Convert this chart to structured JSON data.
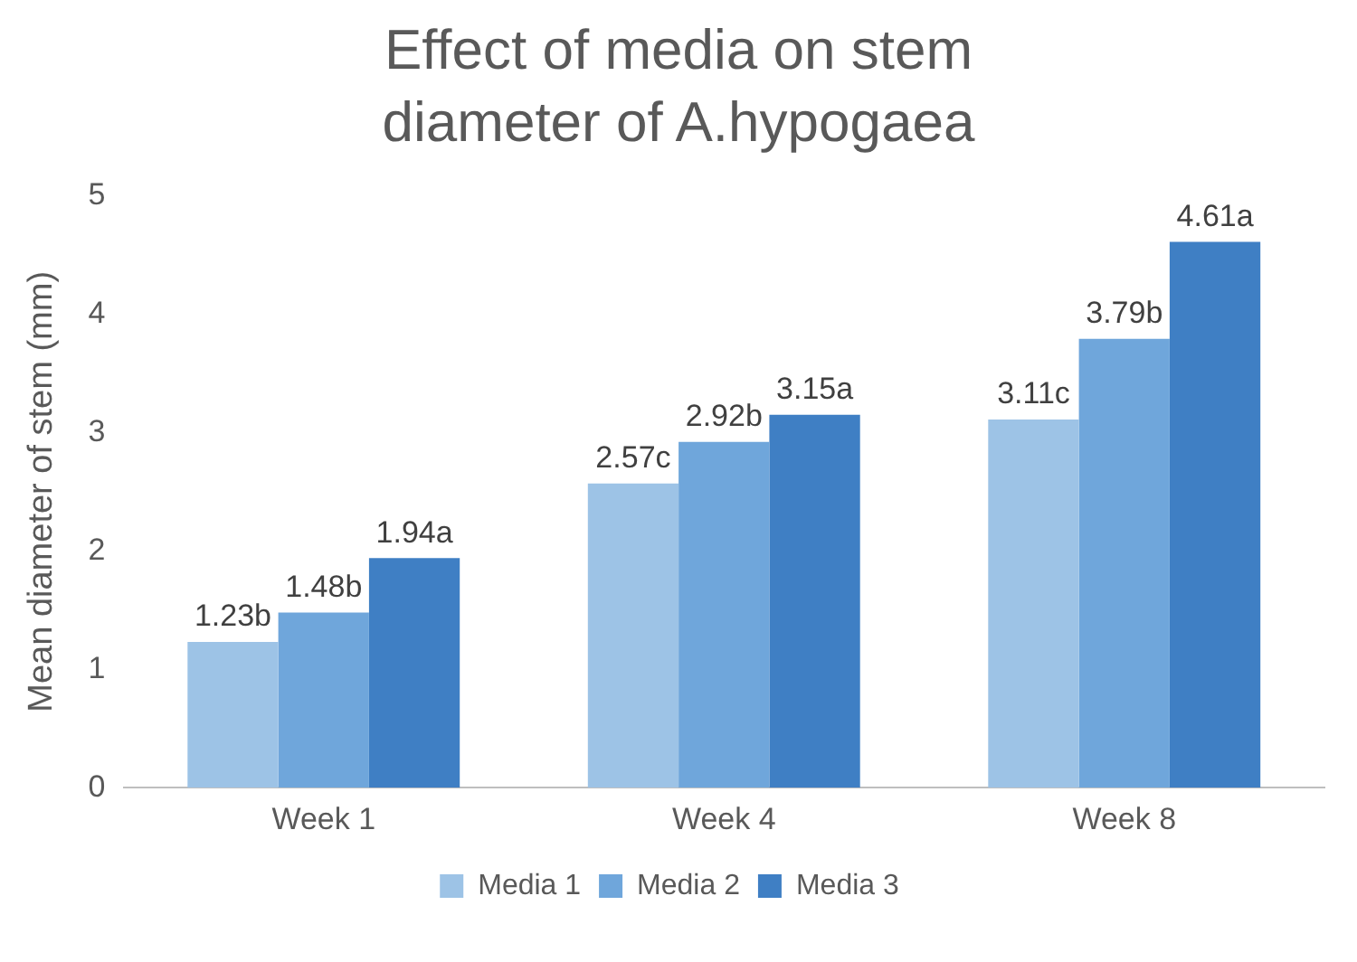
{
  "chart_data": {
    "type": "bar",
    "title": "Effect of media on stem diameter of A.hypogaea",
    "ylabel": "Mean diameter of stem (mm)",
    "categories": [
      "Week 1",
      "Week 4",
      "Week 8"
    ],
    "series": [
      {
        "name": "Media 1",
        "color": "#9dc3e6",
        "values": [
          1.23,
          2.57,
          3.11
        ],
        "value_labels": [
          "1.23b",
          "2.57c",
          "3.11c"
        ]
      },
      {
        "name": "Media 2",
        "color": "#6fa6db",
        "values": [
          1.48,
          2.92,
          3.79
        ],
        "value_labels": [
          "1.48b",
          "2.92b",
          "3.79b"
        ]
      },
      {
        "name": "Media 3",
        "color": "#3f7fc4",
        "values": [
          1.94,
          3.15,
          4.61
        ],
        "value_labels": [
          "1.94a",
          "3.15a",
          "4.61a"
        ]
      }
    ],
    "ylim": [
      0,
      5
    ],
    "yticks": [
      0,
      1,
      2,
      3,
      4,
      5
    ],
    "grid": false,
    "legend": "bottom"
  }
}
